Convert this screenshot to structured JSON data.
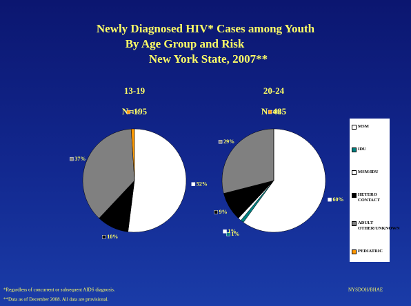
{
  "title": [
    "Newly Diagnosed HIV* Cases among Youth",
    "By Age Group and Risk",
    "New York State, 2007**"
  ],
  "footnotes": [
    "*Regardless of concurrent or subsequent AIDS diagnosis.",
    "**Data as of December 2008.  All data are provisional."
  ],
  "source": "NYSDOH/BHAE",
  "legend": [
    {
      "name": "MSM",
      "color": "#ffffff"
    },
    {
      "name": "IDU",
      "color": "#008080"
    },
    {
      "name": "MSM/IDU",
      "color": "#ffffff"
    },
    {
      "name": "HETERO CONTACT",
      "color": "#000000"
    },
    {
      "name": "ADULT OTHER/UNKNOWN",
      "color": "#808080"
    },
    {
      "name": "PEDIATRIC",
      "color": "#ff9900"
    }
  ],
  "chart_data": [
    {
      "type": "pie",
      "title": "13-19",
      "subtitle": "N=195",
      "categories": [
        "MSM",
        "HETERO CONTACT",
        "ADULT OTHER/UNKNOWN",
        "PEDIATRIC"
      ],
      "values": [
        52,
        10,
        37,
        1
      ],
      "value_labels": [
        "52%",
        "10%",
        "37%",
        "1%"
      ],
      "colors": [
        "#ffffff",
        "#000000",
        "#808080",
        "#ff9900"
      ]
    },
    {
      "type": "pie",
      "title": "20-24",
      "subtitle": "N=485",
      "categories": [
        "MSM",
        "IDU",
        "MSM/IDU",
        "HETERO CONTACT",
        "ADULT OTHER/UNKNOWN",
        "PEDIATRIC"
      ],
      "values": [
        60,
        1,
        1,
        9,
        29,
        0
      ],
      "value_labels": [
        "60%",
        "1%",
        "1%",
        "9%",
        "29%",
        "0%"
      ],
      "colors": [
        "#ffffff",
        "#008080",
        "#ffffff",
        "#000000",
        "#808080",
        "#ff9900"
      ]
    }
  ]
}
